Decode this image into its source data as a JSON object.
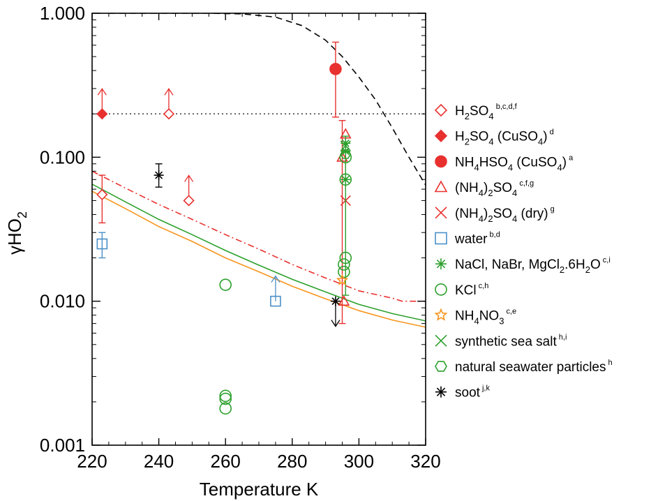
{
  "chart_data": {
    "type": "scatter",
    "title": "",
    "xlabel": "Temperature K",
    "ylabel": "γHO",
    "ylabel_sub": "2",
    "xlim": [
      220,
      320
    ],
    "ylim": [
      0.001,
      1.0
    ],
    "yscale": "log",
    "xticks": [
      220,
      240,
      260,
      280,
      300,
      320
    ],
    "xtick_labels": [
      "220",
      "240",
      "260",
      "280",
      "300",
      "320"
    ],
    "yticks": [
      0.001,
      0.01,
      0.1,
      1.0
    ],
    "ytick_labels": [
      "0.001",
      "0.010",
      "0.100",
      "1.000"
    ],
    "grid": false,
    "legend_position": "right",
    "colors": {
      "red": "#e8312f",
      "blue": "#4a90c8",
      "green": "#2ca02c",
      "orange": "#f7941d",
      "black": "#000000",
      "gray": "#444444"
    },
    "legend": [
      {
        "id": "h2so4",
        "marker": "diamond-open",
        "color": "#e8312f",
        "parts": [
          {
            "t": "H"
          },
          {
            "t": "2",
            "sub": true
          },
          {
            "t": "SO"
          },
          {
            "t": "4",
            "sub": true
          },
          {
            "t": " b,c,d,f",
            "sup": true
          }
        ]
      },
      {
        "id": "h2so4-cuso4",
        "marker": "diamond-filled",
        "color": "#e8312f",
        "parts": [
          {
            "t": "H"
          },
          {
            "t": "2",
            "sub": true
          },
          {
            "t": "SO"
          },
          {
            "t": "4",
            "sub": true
          },
          {
            "t": " (CuSO"
          },
          {
            "t": "4",
            "sub": true
          },
          {
            "t": ")"
          },
          {
            "t": " d",
            "sup": true
          }
        ]
      },
      {
        "id": "nh4hso4-cuso4",
        "marker": "circle-filled",
        "color": "#e8312f",
        "parts": [
          {
            "t": "NH"
          },
          {
            "t": "4",
            "sub": true
          },
          {
            "t": "HSO"
          },
          {
            "t": "4",
            "sub": true
          },
          {
            "t": " (CuSO"
          },
          {
            "t": "4",
            "sub": true
          },
          {
            "t": ")"
          },
          {
            "t": " a",
            "sup": true
          }
        ]
      },
      {
        "id": "nh42so4",
        "marker": "triangle-open",
        "color": "#e8312f",
        "parts": [
          {
            "t": "(NH"
          },
          {
            "t": "4",
            "sub": true
          },
          {
            "t": ")"
          },
          {
            "t": "2",
            "sub": true
          },
          {
            "t": "SO"
          },
          {
            "t": "4",
            "sub": true
          },
          {
            "t": " c,f,g",
            "sup": true
          }
        ]
      },
      {
        "id": "nh42so4-dry",
        "marker": "x",
        "color": "#e8312f",
        "parts": [
          {
            "t": "(NH"
          },
          {
            "t": "4",
            "sub": true
          },
          {
            "t": ")"
          },
          {
            "t": "2",
            "sub": true
          },
          {
            "t": "SO"
          },
          {
            "t": "4",
            "sub": true
          },
          {
            "t": " (dry)"
          },
          {
            "t": " g",
            "sup": true
          }
        ]
      },
      {
        "id": "water",
        "marker": "square-open",
        "color": "#4a90c8",
        "parts": [
          {
            "t": "water"
          },
          {
            "t": " b,d",
            "sup": true
          }
        ]
      },
      {
        "id": "nacl",
        "marker": "asterisk",
        "color": "#2ca02c",
        "parts": [
          {
            "t": "NaCl, NaBr, MgCl"
          },
          {
            "t": "2",
            "sub": true
          },
          {
            "t": ".6H"
          },
          {
            "t": "2",
            "sub": true
          },
          {
            "t": "O"
          },
          {
            "t": " c,i",
            "sup": true
          }
        ]
      },
      {
        "id": "kcl",
        "marker": "circle-open",
        "color": "#2ca02c",
        "parts": [
          {
            "t": "KCl"
          },
          {
            "t": " c,h",
            "sup": true
          }
        ]
      },
      {
        "id": "nh4no3",
        "marker": "star-open",
        "color": "#f7941d",
        "parts": [
          {
            "t": "NH"
          },
          {
            "t": "4",
            "sub": true
          },
          {
            "t": "NO"
          },
          {
            "t": "3",
            "sub": true
          },
          {
            "t": " c,e",
            "sup": true
          }
        ]
      },
      {
        "id": "sea-salt",
        "marker": "x",
        "color": "#2ca02c",
        "parts": [
          {
            "t": "synthetic sea salt"
          },
          {
            "t": " h,i",
            "sup": true
          }
        ]
      },
      {
        "id": "seawater",
        "marker": "hexagon-open",
        "color": "#2ca02c",
        "parts": [
          {
            "t": "natural seawater particles"
          },
          {
            "t": " h",
            "sup": true
          }
        ]
      },
      {
        "id": "soot",
        "marker": "asterisk",
        "color": "#000000",
        "parts": [
          {
            "t": "soot"
          },
          {
            "t": " j,k",
            "sup": true
          }
        ]
      }
    ],
    "series": [
      {
        "id": "h2so4",
        "marker": "diamond-open",
        "color": "#e8312f",
        "points": [
          {
            "x": 223,
            "y": 0.055,
            "err": [
              0.035,
              0.075
            ]
          },
          {
            "x": 243,
            "y": 0.2,
            "arrow": "up"
          },
          {
            "x": 249,
            "y": 0.05,
            "arrow": "up"
          }
        ]
      },
      {
        "id": "h2so4-cuso4",
        "marker": "diamond-filled",
        "color": "#e8312f",
        "points": [
          {
            "x": 223,
            "y": 0.2,
            "arrow": "up"
          }
        ]
      },
      {
        "id": "nh4hso4-cuso4",
        "marker": "circle-filled",
        "color": "#e8312f",
        "points": [
          {
            "x": 293,
            "y": 0.41,
            "err": [
              0.19,
              0.63
            ]
          }
        ]
      },
      {
        "id": "nh42so4",
        "marker": "triangle-open",
        "color": "#e8312f",
        "points": [
          {
            "x": 295,
            "y": 0.1,
            "err": [
              0.007,
              0.18
            ]
          },
          {
            "x": 296,
            "y": 0.145
          },
          {
            "x": 295.5,
            "y": 0.01
          }
        ]
      },
      {
        "id": "nh42so4-dry",
        "marker": "x",
        "color": "#e8312f",
        "points": [
          {
            "x": 296,
            "y": 0.05
          }
        ]
      },
      {
        "id": "water",
        "marker": "square-open",
        "color": "#4a90c8",
        "points": [
          {
            "x": 223,
            "y": 0.025,
            "err": [
              0.02,
              0.03
            ]
          },
          {
            "x": 275,
            "y": 0.01,
            "arrow": "up"
          }
        ]
      },
      {
        "id": "nacl",
        "marker": "asterisk",
        "color": "#2ca02c",
        "points": [
          {
            "x": 296,
            "y": 0.125,
            "err": [
              0.011,
              0.14
            ]
          },
          {
            "x": 296,
            "y": 0.11
          },
          {
            "x": 296,
            "y": 0.07
          }
        ]
      },
      {
        "id": "kcl",
        "marker": "circle-open",
        "color": "#2ca02c",
        "points": [
          {
            "x": 260,
            "y": 0.013
          },
          {
            "x": 260,
            "y": 0.0022
          },
          {
            "x": 260,
            "y": 0.0021
          },
          {
            "x": 260,
            "y": 0.0018
          },
          {
            "x": 296,
            "y": 0.1
          },
          {
            "x": 296,
            "y": 0.07
          },
          {
            "x": 296,
            "y": 0.02
          },
          {
            "x": 295.5,
            "y": 0.018
          },
          {
            "x": 295.5,
            "y": 0.016
          }
        ]
      },
      {
        "id": "nh4no3",
        "marker": "star-open",
        "color": "#f7941d",
        "points": [
          {
            "x": 295,
            "y": 0.014
          }
        ]
      },
      {
        "id": "sea-salt",
        "marker": "x",
        "color": "#2ca02c",
        "points": [
          {
            "x": 296,
            "y": 0.12
          }
        ]
      },
      {
        "id": "seawater",
        "marker": "hexagon-open",
        "color": "#2ca02c",
        "points": [
          {
            "x": 296,
            "y": 0.105
          }
        ]
      },
      {
        "id": "soot",
        "marker": "asterisk",
        "color": "#000000",
        "points": [
          {
            "x": 240,
            "y": 0.075,
            "err": [
              0.062,
              0.09
            ]
          },
          {
            "x": 293,
            "y": 0.01,
            "arrow": "down"
          }
        ]
      }
    ],
    "lines": [
      {
        "id": "dashed-black",
        "style": "dashed",
        "color": "#000000",
        "points": [
          [
            225,
            1.0
          ],
          [
            240,
            1.0
          ],
          [
            255,
            1.0
          ],
          [
            265,
            0.99
          ],
          [
            275,
            0.94
          ],
          [
            283,
            0.82
          ],
          [
            290,
            0.65
          ],
          [
            295,
            0.5
          ],
          [
            300,
            0.36
          ],
          [
            305,
            0.25
          ],
          [
            310,
            0.16
          ],
          [
            315,
            0.1
          ],
          [
            320,
            0.064
          ]
        ]
      },
      {
        "id": "dotted-gray",
        "style": "dotted",
        "color": "#444444",
        "points": [
          [
            220,
            0.2
          ],
          [
            320,
            0.2
          ]
        ]
      },
      {
        "id": "dashdot-red",
        "style": "dashdot",
        "color": "#e8312f",
        "points": [
          [
            220,
            0.08
          ],
          [
            230,
            0.061
          ],
          [
            240,
            0.047
          ],
          [
            250,
            0.037
          ],
          [
            260,
            0.029
          ],
          [
            270,
            0.023
          ],
          [
            280,
            0.018
          ],
          [
            290,
            0.0145
          ],
          [
            300,
            0.0118
          ],
          [
            310,
            0.0105
          ],
          [
            313,
            0.01
          ],
          [
            320,
            0.01
          ]
        ]
      },
      {
        "id": "green-curve",
        "style": "solid",
        "color": "#2ca02c",
        "points": [
          [
            220,
            0.065
          ],
          [
            230,
            0.049
          ],
          [
            240,
            0.037
          ],
          [
            250,
            0.029
          ],
          [
            260,
            0.0225
          ],
          [
            270,
            0.0178
          ],
          [
            280,
            0.0142
          ],
          [
            290,
            0.0116
          ],
          [
            300,
            0.0095
          ],
          [
            310,
            0.0082
          ],
          [
            320,
            0.0073
          ]
        ]
      },
      {
        "id": "orange-curve",
        "style": "solid",
        "color": "#f7941d",
        "points": [
          [
            220,
            0.058
          ],
          [
            230,
            0.044
          ],
          [
            240,
            0.033
          ],
          [
            250,
            0.026
          ],
          [
            260,
            0.02
          ],
          [
            270,
            0.016
          ],
          [
            280,
            0.0127
          ],
          [
            290,
            0.0104
          ],
          [
            300,
            0.0086
          ],
          [
            310,
            0.0074
          ],
          [
            320,
            0.0066
          ]
        ]
      }
    ]
  }
}
